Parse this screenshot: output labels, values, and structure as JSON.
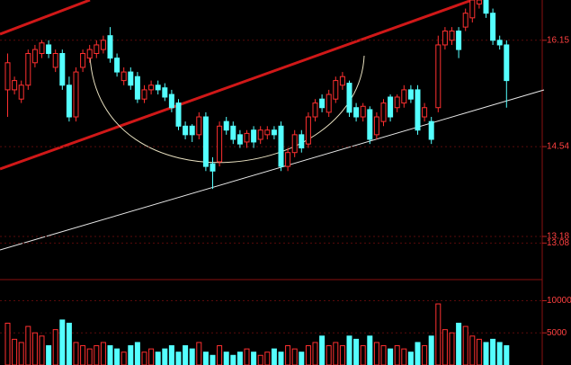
{
  "chart_data": [
    {
      "type": "candlestick",
      "up_color": "#ff3030",
      "down_color": "#54ffff",
      "ylim": [
        12.54,
        16.76
      ],
      "yticks": [
        16.15,
        14.54,
        13.18,
        13.08
      ],
      "open": [
        15.4,
        15.4,
        15.26,
        15.47,
        15.81,
        15.95,
        16.08,
        15.74,
        15.95,
        15.47,
        14.99,
        15.74,
        15.88,
        15.95,
        16.01,
        16.22,
        15.88,
        15.54,
        15.67,
        15.6,
        15.26,
        15.4,
        15.47,
        15.43,
        15.33,
        15.2,
        14.85,
        14.85,
        14.72,
        14.99,
        14.28,
        14.31,
        14.92,
        14.85,
        14.72,
        14.61,
        14.79,
        14.65,
        14.72,
        14.79,
        14.85,
        14.24,
        14.45,
        14.72,
        14.58,
        14.99,
        15.26,
        15.06,
        15.26,
        15.47,
        15.5,
        15.13,
        14.99,
        15.1,
        14.72,
        14.92,
        15.29,
        15.13,
        15.2,
        15.4,
        15.4,
        14.99,
        14.92,
        15.13,
        16.08,
        16.15,
        16.29,
        16.35,
        16.49,
        16.7,
        16.76,
        16.56,
        16.15,
        16.08
      ],
      "high": [
        15.95,
        15.6,
        15.54,
        16.01,
        16.08,
        16.15,
        16.15,
        16.01,
        16.01,
        15.6,
        15.74,
        16.01,
        16.08,
        16.15,
        16.22,
        16.35,
        15.95,
        15.74,
        15.74,
        15.67,
        15.47,
        15.54,
        15.54,
        15.5,
        15.4,
        15.26,
        14.92,
        14.88,
        15.06,
        15.06,
        14.38,
        14.92,
        14.99,
        14.92,
        14.79,
        14.79,
        14.85,
        14.85,
        14.85,
        14.85,
        14.92,
        14.52,
        14.79,
        14.79,
        15.06,
        15.26,
        15.33,
        15.4,
        15.6,
        15.67,
        15.54,
        15.2,
        15.2,
        15.15,
        15.06,
        15.26,
        15.33,
        15.33,
        15.47,
        15.47,
        15.47,
        15.2,
        14.99,
        16.22,
        16.35,
        16.35,
        16.35,
        16.63,
        16.76,
        16.76,
        16.76,
        16.63,
        16.22,
        16.15
      ],
      "low": [
        14.99,
        15.33,
        15.2,
        15.4,
        15.74,
        15.88,
        15.88,
        15.67,
        15.4,
        14.92,
        14.92,
        15.67,
        15.81,
        15.88,
        15.95,
        15.81,
        15.6,
        15.47,
        15.4,
        15.2,
        15.2,
        15.33,
        15.33,
        15.23,
        15.06,
        14.79,
        14.65,
        14.61,
        14.65,
        14.17,
        13.9,
        14.24,
        14.72,
        14.58,
        14.52,
        14.52,
        14.52,
        14.58,
        14.65,
        14.65,
        14.17,
        14.17,
        14.38,
        14.45,
        14.52,
        14.92,
        15.06,
        14.99,
        15.2,
        15.4,
        14.99,
        14.92,
        14.92,
        14.58,
        14.65,
        14.85,
        14.92,
        15.06,
        15.13,
        15.2,
        14.72,
        14.92,
        14.58,
        15.06,
        16.01,
        16.08,
        15.88,
        16.29,
        16.42,
        16.63,
        16.49,
        16.08,
        16.01,
        15.13
      ],
      "close": [
        15.81,
        15.54,
        15.47,
        15.95,
        16.01,
        16.11,
        15.95,
        15.95,
        15.47,
        14.99,
        15.67,
        15.95,
        16.01,
        16.08,
        16.15,
        15.88,
        15.67,
        15.67,
        15.47,
        15.26,
        15.4,
        15.47,
        15.4,
        15.29,
        15.13,
        14.85,
        14.72,
        14.72,
        14.99,
        14.24,
        14.17,
        14.85,
        14.79,
        14.65,
        14.58,
        14.74,
        14.61,
        14.79,
        14.79,
        14.72,
        14.24,
        14.45,
        14.72,
        14.52,
        14.99,
        15.2,
        15.13,
        15.33,
        15.54,
        15.6,
        15.06,
        14.99,
        15.15,
        14.65,
        14.99,
        15.2,
        14.99,
        15.29,
        15.4,
        15.26,
        14.79,
        15.13,
        14.65,
        16.08,
        16.29,
        16.29,
        16.01,
        16.56,
        16.76,
        16.76,
        16.56,
        16.15,
        16.08,
        15.54
      ]
    },
    {
      "type": "bar",
      "ylim": [
        0,
        13000
      ],
      "yticks": [
        10000,
        5000
      ],
      "values": [
        6500,
        4000,
        3500,
        6000,
        5000,
        4500,
        3000,
        5500,
        7000,
        6500,
        3500,
        3000,
        2500,
        3000,
        3500,
        3000,
        2500,
        2000,
        3000,
        3500,
        2000,
        2500,
        2000,
        2500,
        3000,
        2000,
        3000,
        2500,
        3500,
        2000,
        1500,
        3000,
        2000,
        1500,
        2000,
        2500,
        2000,
        1500,
        2000,
        2500,
        2000,
        3000,
        2500,
        2000,
        3000,
        3500,
        4500,
        3000,
        3500,
        3000,
        4500,
        4000,
        3000,
        4500,
        3500,
        3000,
        2500,
        3000,
        2500,
        2000,
        3500,
        3000,
        4500,
        9500,
        5500,
        5000,
        6500,
        6000,
        4500,
        4000,
        3500,
        4000,
        3500,
        3000
      ]
    }
  ]
}
